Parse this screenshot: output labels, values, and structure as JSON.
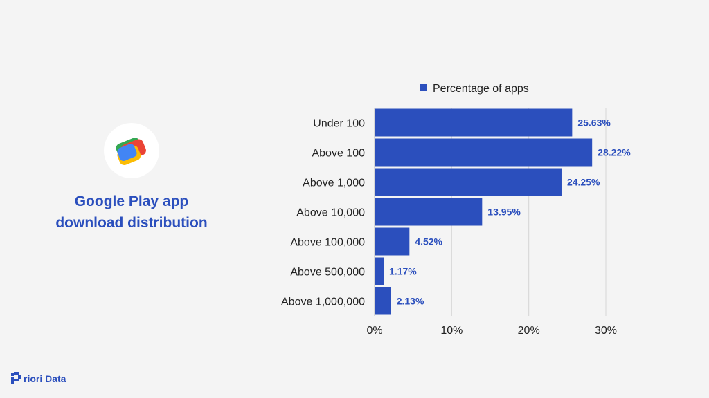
{
  "title": {
    "line1": "Google Play app",
    "line2": "download distribution"
  },
  "brand": {
    "name": "riori Data"
  },
  "logo": {
    "icon": "google-pay-icon"
  },
  "colors": {
    "bar": "#2b4fbd",
    "label": "#2b4fbd",
    "grid": "#d6d6d6",
    "background": "#f4f4f4"
  },
  "chart_data": {
    "type": "bar",
    "orientation": "horizontal",
    "categories": [
      "Under 100",
      "Above 100",
      "Above 1,000",
      "Above 10,000",
      "Above 100,000",
      "Above 500,000",
      "Above 1,000,000"
    ],
    "series": [
      {
        "name": "Percentage of apps",
        "values": [
          25.63,
          28.22,
          24.25,
          13.95,
          4.52,
          1.17,
          2.13
        ]
      }
    ],
    "value_labels": [
      "25.63%",
      "28.22%",
      "24.25%",
      "13.95%",
      "4.52%",
      "1.17%",
      "2.13%"
    ],
    "xticks": [
      "0%",
      "10%",
      "20%",
      "30%"
    ],
    "xlim": [
      0,
      30
    ],
    "grid": true,
    "legend_position": "top"
  }
}
